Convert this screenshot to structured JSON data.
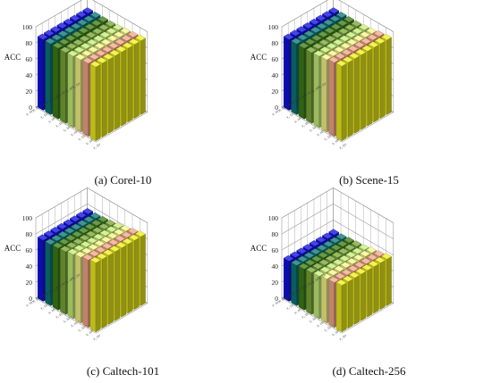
{
  "figure": {
    "panels": [
      {
        "caption": "(a) Corel-10"
      },
      {
        "caption": "(b) Scene-15"
      },
      {
        "caption": "(c) Caltech-101"
      },
      {
        "caption": "(d) Caltech-256"
      }
    ]
  },
  "chart_data": [
    {
      "type": "bar3d",
      "title": "(a) Corel-10",
      "ylabel": "ACC",
      "zlim": [
        0,
        100
      ],
      "zticks": [
        0,
        20,
        40,
        60,
        80,
        100
      ],
      "grid": true,
      "n_rows": 8,
      "n_cols": 8,
      "row_labels": [
        "γ₁ 10⁻⁶",
        "γ₁ 10⁻⁵",
        "γ₁ 10⁻⁴",
        "γ₁ 10⁻³",
        "γ₁ 10⁻²",
        "γ₁ 10⁻¹",
        "γ₁ 10⁰",
        "γ₁ 10¹"
      ],
      "col_labels": [
        "γ₂ 10⁻⁶",
        "γ₂ 10⁻⁵",
        "γ₂ 10⁻⁴",
        "γ₂ 10⁻³",
        "γ₂ 10⁻²",
        "γ₂ 10⁻¹",
        "γ₂ 10⁰",
        "γ₂ 10¹"
      ],
      "col_colors": [
        "#1010e0",
        "#0e7676",
        "#3e7e1a",
        "#7aa83a",
        "#c8f07a",
        "#f7f78c",
        "#f5a88a",
        "#f0f020"
      ],
      "values": [
        [
          88,
          88,
          88,
          88,
          89,
          90,
          91,
          92
        ],
        [
          88,
          88,
          88,
          88,
          89,
          90,
          91,
          92
        ],
        [
          88,
          88,
          88,
          88,
          89,
          90,
          91,
          92
        ],
        [
          88,
          88,
          88,
          88,
          89,
          90,
          91,
          92
        ],
        [
          88,
          88,
          88,
          88,
          89,
          90,
          91,
          92
        ],
        [
          88,
          88,
          88,
          88,
          89,
          90,
          91,
          92
        ],
        [
          88,
          88,
          88,
          88,
          89,
          90,
          91,
          92
        ],
        [
          88,
          88,
          88,
          88,
          89,
          90,
          91,
          92
        ]
      ]
    },
    {
      "type": "bar3d",
      "title": "(b) Scene-15",
      "ylabel": "ACC",
      "zlim": [
        0,
        100
      ],
      "zticks": [
        0,
        20,
        40,
        60,
        80,
        100
      ],
      "grid": true,
      "n_rows": 8,
      "n_cols": 8,
      "row_labels": [
        "γ₁ 10⁻⁶",
        "γ₁ 10⁻⁵",
        "γ₁ 10⁻⁴",
        "γ₁ 10⁻³",
        "γ₁ 10⁻²",
        "γ₁ 10⁻¹",
        "γ₁ 10⁰",
        "γ₁ 10¹"
      ],
      "col_labels": [
        "γ₂ 10⁻⁶",
        "γ₂ 10⁻⁵",
        "γ₂ 10⁻⁴",
        "γ₂ 10⁻³",
        "γ₂ 10⁻²",
        "γ₂ 10⁻¹",
        "γ₂ 10⁰",
        "γ₂ 10¹"
      ],
      "col_colors": [
        "#1010e0",
        "#0e7676",
        "#3e7e1a",
        "#7aa83a",
        "#c8f07a",
        "#f7f78c",
        "#f5a88a",
        "#f0f020"
      ],
      "values": [
        [
          88,
          88,
          88,
          88,
          89,
          90,
          92,
          93
        ],
        [
          88,
          88,
          88,
          88,
          89,
          90,
          92,
          93
        ],
        [
          88,
          88,
          88,
          88,
          89,
          90,
          92,
          93
        ],
        [
          88,
          88,
          88,
          88,
          89,
          90,
          92,
          93
        ],
        [
          88,
          88,
          88,
          88,
          89,
          90,
          92,
          93
        ],
        [
          88,
          88,
          88,
          88,
          89,
          90,
          92,
          93
        ],
        [
          88,
          88,
          88,
          88,
          89,
          90,
          92,
          93
        ],
        [
          88,
          88,
          88,
          88,
          89,
          90,
          92,
          93
        ]
      ]
    },
    {
      "type": "bar3d",
      "title": "(c) Caltech-101",
      "ylabel": "ACC",
      "zlim": [
        0,
        100
      ],
      "zticks": [
        0,
        20,
        40,
        60,
        80,
        100
      ],
      "grid": true,
      "n_rows": 8,
      "n_cols": 8,
      "row_labels": [
        "γ₁ 10⁻⁶",
        "γ₁ 10⁻⁵",
        "γ₁ 10⁻⁴",
        "γ₁ 10⁻³",
        "γ₁ 10⁻²",
        "γ₁ 10⁻¹",
        "γ₁ 10⁰",
        "γ₁ 10¹"
      ],
      "col_labels": [
        "γ₂ 10⁻⁶",
        "γ₂ 10⁻⁵",
        "γ₂ 10⁻⁴",
        "γ₂ 10⁻³",
        "γ₂ 10⁻²",
        "γ₂ 10⁻¹",
        "γ₂ 10⁰",
        "γ₂ 10¹"
      ],
      "col_colors": [
        "#1010e0",
        "#0e7676",
        "#3e7e1a",
        "#7aa83a",
        "#c8f07a",
        "#f7f78c",
        "#f5a88a",
        "#f0f020"
      ],
      "values": [
        [
          76,
          76,
          77,
          78,
          80,
          82,
          84,
          86
        ],
        [
          76,
          76,
          77,
          78,
          80,
          82,
          84,
          86
        ],
        [
          76,
          76,
          77,
          78,
          80,
          82,
          84,
          86
        ],
        [
          76,
          76,
          77,
          78,
          80,
          82,
          84,
          86
        ],
        [
          76,
          76,
          77,
          78,
          80,
          82,
          84,
          86
        ],
        [
          76,
          76,
          77,
          78,
          80,
          82,
          84,
          86
        ],
        [
          76,
          76,
          77,
          78,
          80,
          82,
          84,
          86
        ],
        [
          76,
          76,
          77,
          78,
          80,
          82,
          84,
          86
        ]
      ]
    },
    {
      "type": "bar3d",
      "title": "(d) Caltech-256",
      "ylabel": "ACC",
      "zlim": [
        0,
        100
      ],
      "zticks": [
        0,
        20,
        40,
        60,
        80,
        100
      ],
      "grid": true,
      "n_rows": 8,
      "n_cols": 8,
      "row_labels": [
        "γ₁ 10⁻⁶",
        "γ₁ 10⁻⁵",
        "γ₁ 10⁻⁴",
        "γ₁ 10⁻³",
        "γ₁ 10⁻²",
        "γ₁ 10⁻¹",
        "γ₁ 10⁰",
        "γ₁ 10¹"
      ],
      "col_labels": [
        "γ₂ 10⁻⁶",
        "γ₂ 10⁻⁵",
        "γ₂ 10⁻⁴",
        "γ₂ 10⁻³",
        "γ₂ 10⁻²",
        "γ₂ 10⁻¹",
        "γ₂ 10⁰",
        "γ₂ 10¹"
      ],
      "col_colors": [
        "#1010e0",
        "#0e7676",
        "#3e7e1a",
        "#7aa83a",
        "#c8f07a",
        "#f7f78c",
        "#f5a88a",
        "#f0f020"
      ],
      "values": [
        [
          50,
          50,
          51,
          52,
          53,
          55,
          56,
          58
        ],
        [
          50,
          50,
          51,
          52,
          53,
          55,
          56,
          58
        ],
        [
          50,
          50,
          51,
          52,
          53,
          55,
          56,
          58
        ],
        [
          50,
          50,
          51,
          52,
          53,
          55,
          56,
          58
        ],
        [
          50,
          50,
          51,
          52,
          53,
          55,
          56,
          58
        ],
        [
          50,
          50,
          51,
          52,
          53,
          55,
          56,
          58
        ],
        [
          50,
          50,
          51,
          52,
          53,
          55,
          56,
          58
        ],
        [
          50,
          50,
          51,
          52,
          53,
          55,
          56,
          58
        ]
      ]
    }
  ]
}
